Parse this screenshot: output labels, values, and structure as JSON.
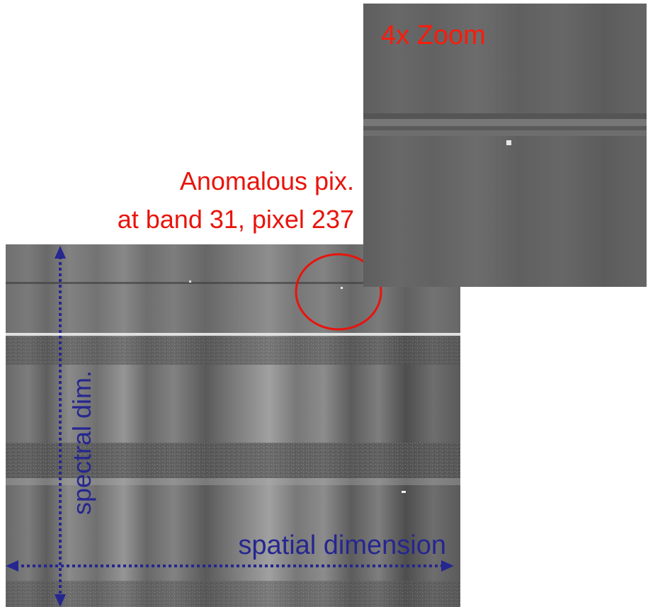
{
  "zoom_label": "4x Zoom",
  "annotation": {
    "line1": "Anomalous pix.",
    "line2": "at band 31, pixel 237"
  },
  "axes": {
    "spectral": "spectral dim.",
    "spatial": "spatial dimension"
  }
}
